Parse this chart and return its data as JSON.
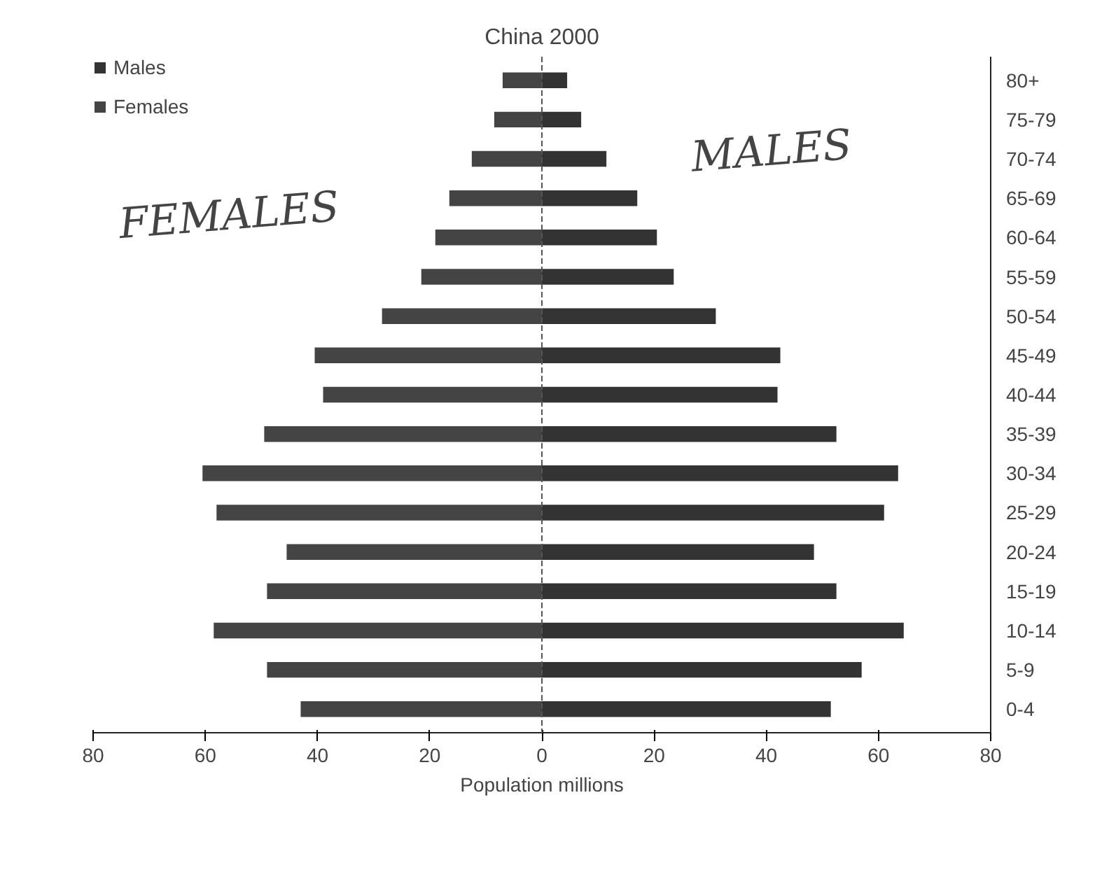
{
  "chart_data": {
    "type": "bar",
    "orientation": "horizontal",
    "stacked": true,
    "title": "China 2000",
    "xlabel": "Population millions",
    "categories": [
      "80+",
      "75-79",
      "70-74",
      "65-69",
      "60-64",
      "55-59",
      "50-54",
      "45-49",
      "40-44",
      "35-39",
      "30-34",
      "25-29",
      "20-24",
      "15-19",
      "10-14",
      "5-9",
      "0-4"
    ],
    "series": [
      {
        "name": "Males",
        "color": "#333333",
        "values": [
          4.5,
          7,
          11.5,
          17,
          20.5,
          23.5,
          31,
          42.5,
          42,
          52.5,
          63.5,
          61,
          48.5,
          52.5,
          64.5,
          57,
          51.5
        ]
      },
      {
        "name": "Females",
        "color": "#444444",
        "values": [
          -7,
          -8.5,
          -12.5,
          -16.5,
          -19,
          -21.5,
          -28.5,
          -40.5,
          -39,
          -49.5,
          -60.5,
          -58,
          -45.5,
          -49,
          -58.5,
          -49,
          -43
        ]
      }
    ],
    "xlim": [
      -80,
      80
    ],
    "xticks": [
      {
        "value": -80,
        "label": "80"
      },
      {
        "value": -60,
        "label": "60"
      },
      {
        "value": -40,
        "label": "40"
      },
      {
        "value": -20,
        "label": "20"
      },
      0,
      20,
      40,
      60,
      80
    ],
    "ref_lines": [
      {
        "axis": "x",
        "value": 0,
        "color": "#555555",
        "line_style": "dashed"
      }
    ],
    "annotations": [
      "FEMALES",
      "MALES"
    ],
    "legend": "top left",
    "grid": false
  }
}
